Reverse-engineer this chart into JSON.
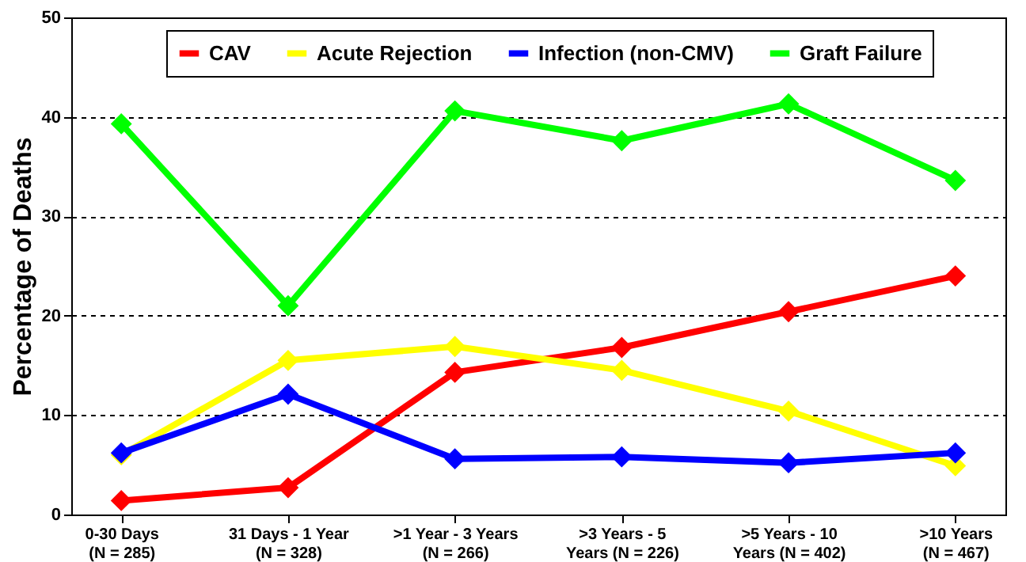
{
  "chart_data": {
    "type": "line",
    "ylabel": "Percentage of Deaths",
    "categories": [
      "0-30 Days\n(N = 285)",
      "31 Days - 1 Year\n(N = 328)",
      ">1 Year - 3 Years\n(N = 266)",
      ">3 Years - 5\nYears (N = 226)",
      ">5 Years - 10\nYears (N = 402)",
      ">10 Years\n(N = 467)"
    ],
    "series": [
      {
        "name": "CAV",
        "color": "#ff0000",
        "values": [
          1.4,
          2.7,
          14.3,
          16.8,
          20.4,
          24.0
        ]
      },
      {
        "name": "Acute Rejection",
        "color": "#ffff00",
        "values": [
          6.0,
          15.5,
          16.9,
          14.5,
          10.4,
          4.9
        ]
      },
      {
        "name": "Infection (non-CMV)",
        "color": "#0000ff",
        "values": [
          6.2,
          12.1,
          5.6,
          5.8,
          5.2,
          6.2
        ]
      },
      {
        "name": "Graft Failure",
        "color": "#00ff00",
        "values": [
          39.3,
          21.0,
          40.6,
          37.6,
          41.3,
          33.6
        ]
      }
    ],
    "ylim": [
      0,
      50
    ],
    "yticks": [
      0,
      10,
      20,
      30,
      40,
      50
    ],
    "grid": "y",
    "legend": "top",
    "marker": "diamond",
    "line_style": "solid"
  }
}
